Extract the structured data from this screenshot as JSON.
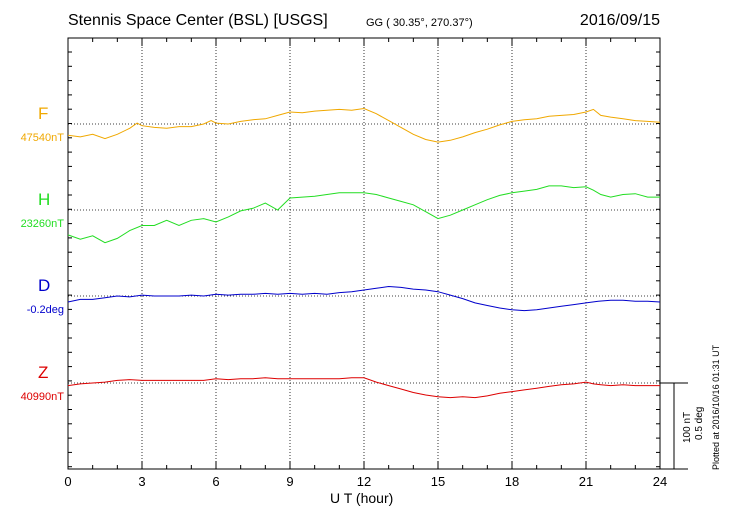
{
  "header": {
    "station": "Stennis Space Center (BSL)  [USGS]",
    "coords": "GG ( 30.35°, 270.37°)",
    "date": "2016/09/15"
  },
  "footer": {
    "plotted": "Plotted at 2016/10/16 01:31  UT",
    "scale_nt": "100 nT",
    "scale_deg": "0.5 deg"
  },
  "chart_data": {
    "type": "line",
    "xlabel": "U T (hour)",
    "xlim": [
      0,
      24
    ],
    "xticks": [
      "0",
      "3",
      "6",
      "9",
      "12",
      "15",
      "18",
      "21",
      "24"
    ],
    "grid": true,
    "series": [
      {
        "name": "F",
        "baseline_label": "47540nT",
        "color": "#f0a800",
        "x": [
          0,
          0.5,
          1,
          1.5,
          2,
          2.5,
          2.8,
          3,
          3.5,
          4,
          4.5,
          5,
          5.5,
          5.8,
          6,
          6.5,
          7,
          7.5,
          8,
          8.5,
          9,
          9.5,
          10,
          10.5,
          11,
          11.5,
          12,
          12.5,
          13,
          13.5,
          14,
          14.5,
          15,
          15.5,
          16,
          16.5,
          17,
          17.5,
          18,
          18.5,
          19,
          19.5,
          20,
          20.5,
          21,
          21.3,
          21.6,
          22,
          22.5,
          23,
          23.5,
          24
        ],
        "values": [
          -13,
          -15,
          -12,
          -17,
          -12,
          -5,
          1,
          -2,
          -4,
          -5,
          -3,
          -3,
          0,
          4,
          1,
          0,
          3,
          5,
          6,
          10,
          14,
          13,
          15,
          16,
          17,
          16,
          18,
          12,
          4,
          -4,
          -12,
          -18,
          -21,
          -19,
          -15,
          -10,
          -6,
          -1,
          3,
          5,
          6,
          9,
          10,
          11,
          14,
          17,
          10,
          8,
          6,
          4,
          3,
          2
        ]
      },
      {
        "name": "H",
        "baseline_label": "23260nT",
        "color": "#22dd22",
        "x": [
          0,
          0.5,
          1,
          1.5,
          2,
          2.5,
          3,
          3.5,
          4,
          4.5,
          5,
          5.5,
          6,
          6.5,
          7,
          7.5,
          8,
          8.5,
          9,
          9.5,
          10,
          10.5,
          11,
          11.5,
          12,
          12.5,
          13,
          13.5,
          14,
          14.5,
          15,
          15.5,
          16,
          16.5,
          17,
          17.5,
          18,
          18.5,
          19,
          19.5,
          20,
          20.5,
          21,
          21.3,
          21.6,
          22,
          22.5,
          23,
          23.5,
          24
        ],
        "values": [
          -29,
          -34,
          -30,
          -38,
          -33,
          -24,
          -18,
          -18,
          -12,
          -18,
          -12,
          -10,
          -14,
          -8,
          -1,
          2,
          8,
          0,
          14,
          15,
          16,
          18,
          20,
          20,
          20,
          18,
          14,
          10,
          6,
          -2,
          -10,
          -6,
          0,
          6,
          12,
          17,
          20,
          22,
          24,
          28,
          28,
          26,
          27,
          23,
          18,
          15,
          18,
          19,
          15,
          15
        ]
      },
      {
        "name": "D",
        "baseline_label": "-0.2deg",
        "color": "#0000cc",
        "x": [
          0,
          0.5,
          1,
          1.5,
          2,
          2.5,
          3,
          3.5,
          4,
          4.5,
          5,
          5.5,
          6,
          6.5,
          7,
          7.5,
          8,
          8.5,
          9,
          9.5,
          10,
          10.5,
          11,
          11.5,
          12,
          12.5,
          13,
          13.5,
          14,
          14.5,
          15,
          15.5,
          16,
          16.5,
          17,
          17.5,
          18,
          18.5,
          19,
          19.5,
          20,
          20.5,
          21,
          21.5,
          22,
          22.5,
          23,
          23.5,
          24
        ],
        "values": [
          -7,
          -4,
          -4,
          -2,
          0,
          -1,
          1,
          0,
          0,
          0,
          1,
          0,
          2,
          1,
          2,
          2,
          3,
          2,
          3,
          2,
          3,
          2,
          4,
          5,
          7,
          9,
          11,
          10,
          8,
          7,
          5,
          1,
          -3,
          -8,
          -11,
          -14,
          -16,
          -17,
          -16,
          -14,
          -12,
          -10,
          -8,
          -6,
          -5,
          -5,
          -6,
          -6,
          -7
        ]
      },
      {
        "name": "Z",
        "baseline_label": "40990nT",
        "color": "#dd0000",
        "x": [
          0,
          0.5,
          1,
          1.5,
          2,
          2.5,
          3,
          3.5,
          4,
          4.5,
          5,
          5.5,
          6,
          6.5,
          7,
          7.5,
          8,
          8.5,
          9,
          9.5,
          10,
          10.5,
          11,
          11.5,
          12,
          12.5,
          13,
          13.5,
          14,
          14.5,
          15,
          15.5,
          16,
          16.5,
          17,
          17.5,
          18,
          18.5,
          19,
          19.5,
          20,
          20.5,
          21,
          21.3,
          21.6,
          22,
          22.5,
          23,
          23.5,
          24
        ],
        "values": [
          -3,
          -1,
          0,
          1,
          3,
          4,
          3,
          3,
          3,
          3,
          3,
          3,
          5,
          4,
          5,
          5,
          6,
          5,
          5,
          5,
          5,
          5,
          5,
          6,
          6,
          1,
          -3,
          -7,
          -11,
          -14,
          -16,
          -17,
          -16,
          -17,
          -15,
          -12,
          -10,
          -8,
          -6,
          -4,
          -2,
          -1,
          1,
          -1,
          -2,
          -3,
          -2,
          -3,
          -3,
          -3
        ]
      }
    ]
  }
}
